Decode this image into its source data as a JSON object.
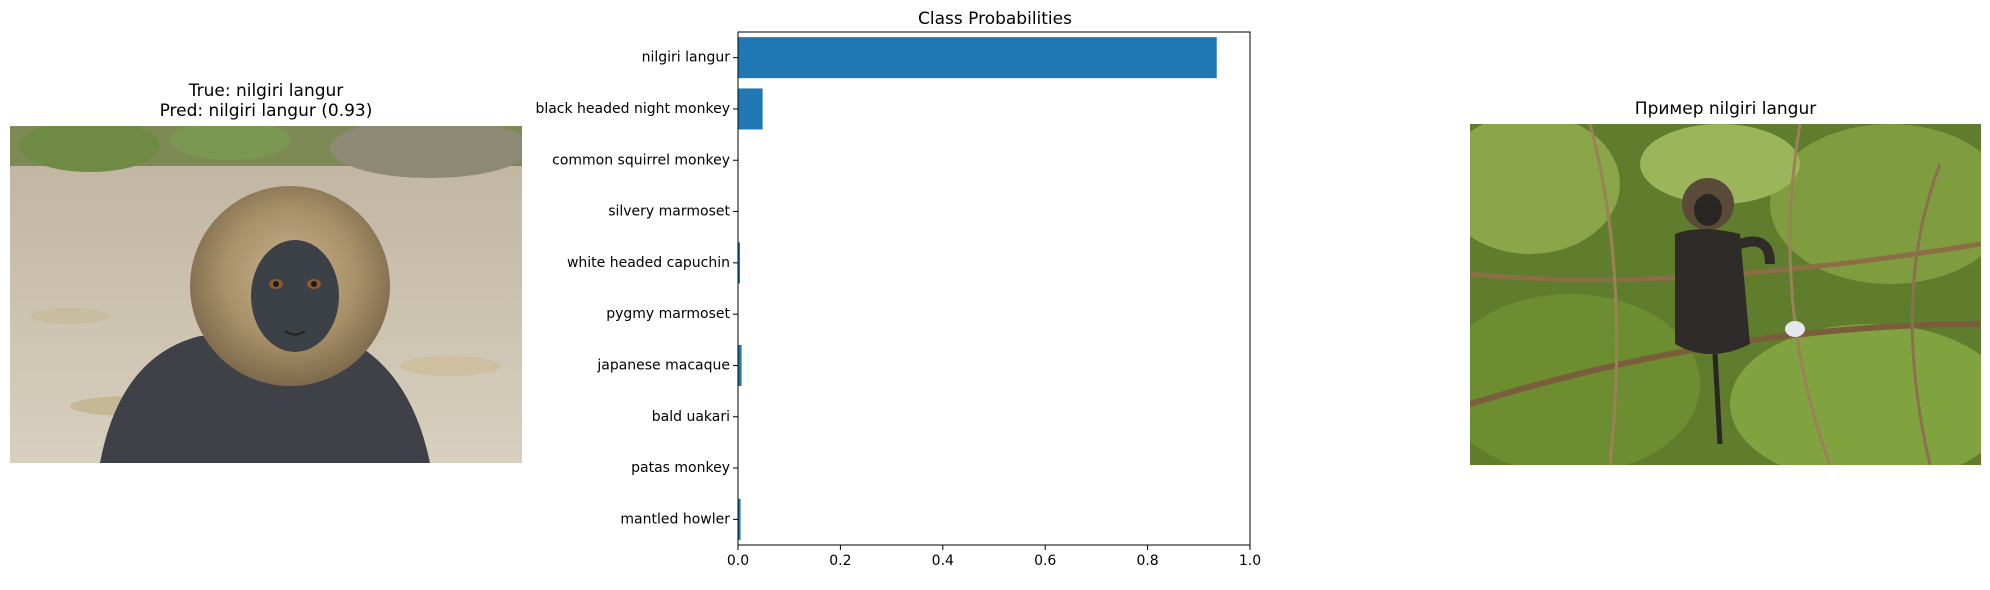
{
  "left_panel": {
    "title_line1": "True: nilgiri langur",
    "title_line2": "Pred: nilgiri langur (0.93)",
    "image_subject": "nilgiri langur close-up portrait photo"
  },
  "right_panel": {
    "title": "Пример nilgiri langur",
    "image_subject": "nilgiri langur in tree branches photo"
  },
  "chart_data": {
    "type": "bar",
    "orientation": "horizontal",
    "title": "Class Probabilities",
    "categories": [
      "nilgiri langur",
      "black headed night monkey",
      "common squirrel monkey",
      "silvery marmoset",
      "white headed capuchin",
      "pygmy marmoset",
      "japanese macaque",
      "bald uakari",
      "patas monkey",
      "mantled howler"
    ],
    "values": [
      0.935,
      0.048,
      0.001,
      0.001,
      0.004,
      0.001,
      0.007,
      0.001,
      0.001,
      0.005
    ],
    "xlim": [
      0,
      1.0
    ],
    "xticks": [
      "0.0",
      "0.2",
      "0.4",
      "0.6",
      "0.8",
      "1.0"
    ],
    "xlabel": "",
    "ylabel": "",
    "bar_color": "#1f77b4",
    "grid": false
  },
  "colors": {
    "bar": "#1f77b4",
    "background": "#ffffff"
  }
}
